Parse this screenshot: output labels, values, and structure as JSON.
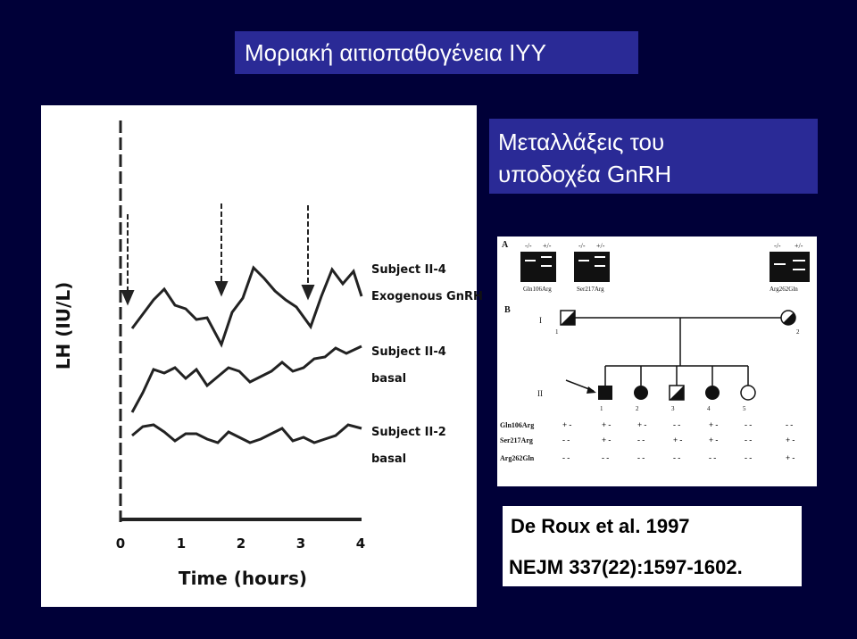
{
  "slide": {
    "title": "Μοριακή αιτιοπαθογένεια ΙΥΥ",
    "subtitle_lines": [
      "Μεταλλάξεις του",
      "υποδοχέα GnRH"
    ],
    "citation": [
      "De Roux et al. 1997",
      "NEJM 337(22):1597-1602."
    ]
  },
  "lh_figure": {
    "y_label": "LH (IU/L)",
    "x_label": "Time (hours)",
    "x_ticks": [
      "0",
      "1",
      "2",
      "3",
      "4"
    ],
    "series_labels": [
      [
        "Subject II-4",
        "Exogenous GnRH"
      ],
      [
        "Subject II-4",
        "basal"
      ],
      [
        "Subject II-2",
        "basal"
      ]
    ]
  },
  "pedigree": {
    "panel_labels": [
      "A",
      "B"
    ],
    "gel_headers": [
      "-/-",
      "+/-"
    ],
    "mutations": [
      "Gln106Arg",
      "Ser217Arg",
      "Arg262Gln"
    ],
    "generations": [
      "I",
      "II"
    ],
    "generation_I": [
      "1",
      "2"
    ],
    "generation_II": [
      "1",
      "2",
      "3",
      "4",
      "5"
    ],
    "genotypes": [
      [
        "+ -",
        "+ -",
        "+ -",
        "- -",
        "+ -",
        "- -",
        "- -"
      ],
      [
        "- -",
        "+ -",
        "- -",
        "+ -",
        "+ -",
        "- -",
        "+ -"
      ],
      [
        "- -",
        "- -",
        "- -",
        "- -",
        "- -",
        "- -",
        "+ -"
      ]
    ]
  }
}
